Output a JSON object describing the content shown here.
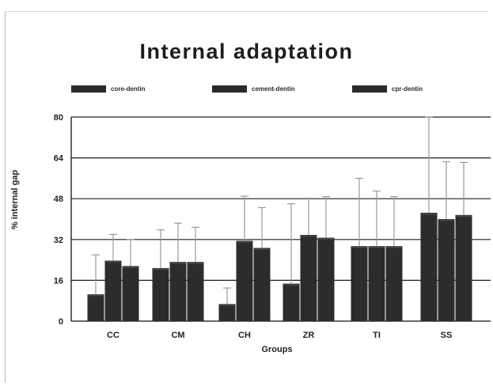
{
  "chart_data": {
    "type": "bar",
    "title": "Internal adaptation",
    "xlabel": "Groups",
    "ylabel": "% internal gap",
    "categories": [
      "CC",
      "CM",
      "CH",
      "ZR",
      "TI",
      "SS"
    ],
    "yticks": [
      "0",
      "16",
      "32",
      "48",
      "64",
      "80"
    ],
    "ylim": [
      0,
      80
    ],
    "grid": true,
    "legend_position": "top",
    "error_bars": true,
    "series": [
      {
        "name": "core-dentin",
        "values": [
          10.5,
          20.8,
          6.7,
          14.7,
          29.4,
          42.5
        ],
        "errors": [
          15.5,
          15.0,
          6.3,
          31.3,
          26.6,
          37.5
        ]
      },
      {
        "name": "cement-dentin",
        "values": [
          23.7,
          23.2,
          31.5,
          33.8,
          29.4,
          40.0
        ],
        "errors": [
          10.3,
          15.2,
          17.5,
          14.4,
          21.6,
          22.5
        ]
      },
      {
        "name": "cpr-dentin",
        "values": [
          21.6,
          23.2,
          28.7,
          32.7,
          29.4,
          41.6
        ],
        "errors": [
          10.4,
          13.6,
          15.8,
          16.1,
          19.4,
          20.6
        ]
      }
    ],
    "colors": {
      "bar": "#2c2c2c",
      "highlight": "#4a4a4a",
      "grid": "#1e1e1e",
      "error": "#9a9a9a",
      "axis": "#111111"
    }
  }
}
